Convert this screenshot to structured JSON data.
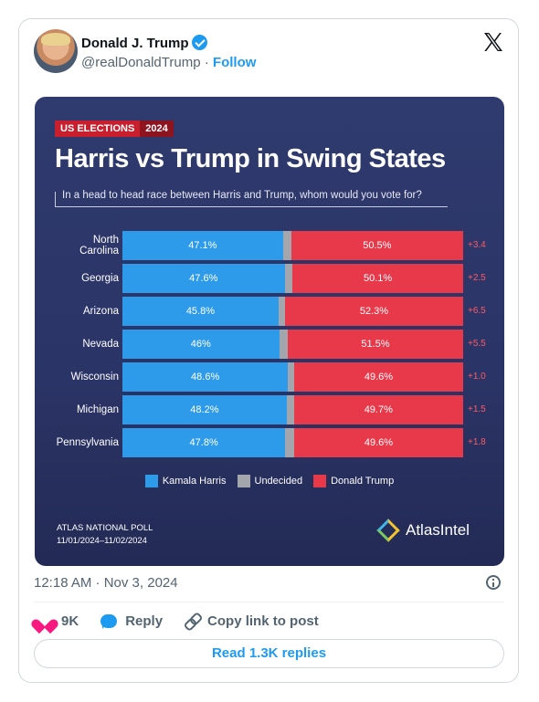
{
  "author": {
    "name": "Donald J. Trump",
    "handle": "@realDonaldTrump",
    "separator": "·",
    "follow": "Follow"
  },
  "graphic": {
    "tag_left": "US ELECTIONS",
    "tag_right": "2024",
    "title": "Harris vs Trump in Swing States",
    "question": "In a head to head race between Harris and Trump, whom would you vote for?",
    "poll_name": "ATLAS NATIONAL POLL",
    "poll_dates": "11/01/2024–11/02/2024",
    "brand": "AtlasIntel",
    "legend": {
      "harris": "Kamala Harris",
      "undecided": "Undecided",
      "trump": "Donald Trump"
    },
    "colors": {
      "harris": "#2e9bea",
      "undecided": "#a3a6ad",
      "trump": "#e8394b"
    }
  },
  "chart_data": {
    "type": "bar",
    "categories": [
      "North Carolina",
      "Georgia",
      "Arizona",
      "Nevada",
      "Wisconsin",
      "Michigan",
      "Pennsylvania"
    ],
    "series": [
      {
        "name": "Kamala Harris",
        "values": [
          47.1,
          47.6,
          45.8,
          46,
          48.6,
          48.2,
          47.8
        ],
        "labels": [
          "47.1%",
          "47.6%",
          "45.8%",
          "46%",
          "48.6%",
          "48.2%",
          "47.8%"
        ]
      },
      {
        "name": "Undecided",
        "values": [
          2.4,
          2.3,
          1.9,
          2.5,
          1.8,
          2.1,
          2.6
        ]
      },
      {
        "name": "Donald Trump",
        "values": [
          50.5,
          50.1,
          52.3,
          51.5,
          49.6,
          49.7,
          49.6
        ],
        "labels": [
          "50.5%",
          "50.1%",
          "52.3%",
          "51.5%",
          "49.6%",
          "49.7%",
          "49.6%"
        ]
      }
    ],
    "margins": [
      "+3.4",
      "+2.5",
      "+6.5",
      "+5.5",
      "+1.0",
      "+1.5",
      "+1.8"
    ]
  },
  "tweet": {
    "timestamp": "12:18 AM · Nov 3, 2024",
    "likes": "9K",
    "reply": "Reply",
    "copy_link": "Copy link to post",
    "read_replies": "Read 1.3K replies"
  }
}
